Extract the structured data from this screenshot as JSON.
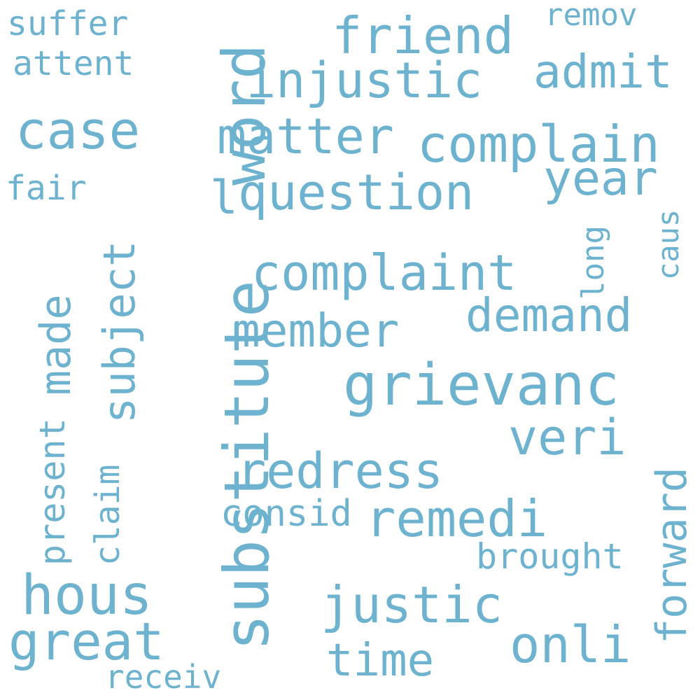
{
  "colors": {
    "word": "#6db3cf",
    "background": "#ffffff"
  },
  "words": [
    {
      "text": "substitute",
      "rotation": "vertical"
    },
    {
      "text": "word",
      "rotation": "vertical"
    },
    {
      "text": "grievanc",
      "rotation": "horizontal"
    },
    {
      "text": "complaint",
      "rotation": "horizontal"
    },
    {
      "text": "complain",
      "rotation": "horizontal"
    },
    {
      "text": "injustic",
      "rotation": "horizontal"
    },
    {
      "text": "question",
      "rotation": "horizontal"
    },
    {
      "text": "redress",
      "rotation": "horizontal"
    },
    {
      "text": "justic",
      "rotation": "horizontal"
    },
    {
      "text": "friend",
      "rotation": "horizontal"
    },
    {
      "text": "matter",
      "rotation": "horizontal"
    },
    {
      "text": "member",
      "rotation": "horizontal"
    },
    {
      "text": "demand",
      "rotation": "horizontal"
    },
    {
      "text": "remedi",
      "rotation": "horizontal"
    },
    {
      "text": "subject",
      "rotation": "vertical"
    },
    {
      "text": "forward",
      "rotation": "vertical"
    },
    {
      "text": "admit",
      "rotation": "horizontal"
    },
    {
      "text": "case",
      "rotation": "horizontal"
    },
    {
      "text": "year",
      "rotation": "horizontal"
    },
    {
      "text": "veri",
      "rotation": "horizontal"
    },
    {
      "text": "hous",
      "rotation": "horizontal"
    },
    {
      "text": "great",
      "rotation": "horizontal"
    },
    {
      "text": "onli",
      "rotation": "horizontal"
    },
    {
      "text": "time",
      "rotation": "horizontal"
    },
    {
      "text": "made",
      "rotation": "vertical"
    },
    {
      "text": "present",
      "rotation": "vertical"
    },
    {
      "text": "claim",
      "rotation": "vertical"
    },
    {
      "text": "brought",
      "rotation": "horizontal"
    },
    {
      "text": "consid",
      "rotation": "horizontal"
    },
    {
      "text": "suffer",
      "rotation": "horizontal"
    },
    {
      "text": "attent",
      "rotation": "horizontal"
    },
    {
      "text": "remov",
      "rotation": "horizontal"
    },
    {
      "text": "fair",
      "rotation": "horizontal"
    },
    {
      "text": "receiv",
      "rotation": "horizontal"
    },
    {
      "text": "long",
      "rotation": "vertical"
    },
    {
      "text": "caus",
      "rotation": "vertical"
    },
    {
      "text": "l",
      "rotation": "horizontal"
    }
  ]
}
